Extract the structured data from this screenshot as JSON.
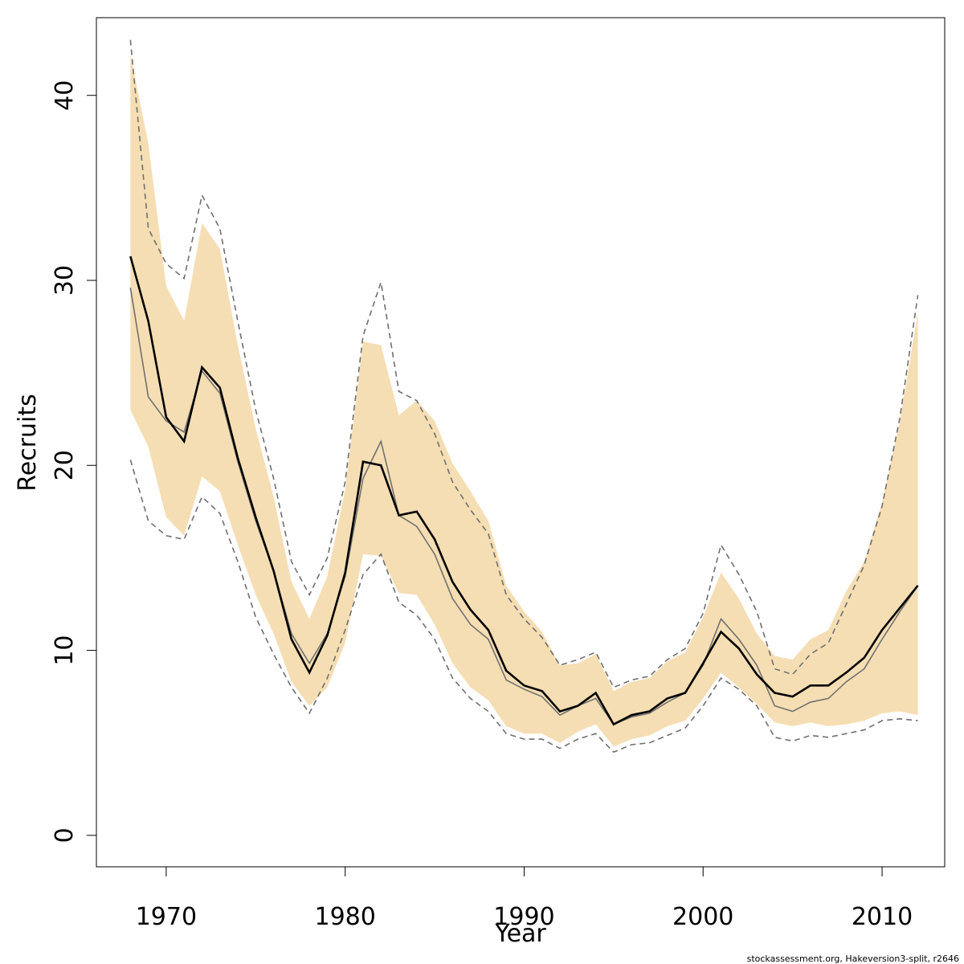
{
  "chart_data": {
    "type": "line",
    "title": "",
    "xlabel": "Year",
    "ylabel": "Recruits",
    "xlim": [
      1966.1,
      2013.5
    ],
    "ylim": [
      -1.7,
      44.2
    ],
    "xticks": [
      1970,
      1980,
      1990,
      2000,
      2010
    ],
    "yticks": [
      0,
      10,
      20,
      30,
      40
    ],
    "grid": false,
    "x": [
      1968,
      1969,
      1970,
      1971,
      1972,
      1973,
      1974,
      1975,
      1976,
      1977,
      1978,
      1979,
      1980,
      1981,
      1982,
      1983,
      1984,
      1985,
      1986,
      1987,
      1988,
      1989,
      1990,
      1991,
      1992,
      1993,
      1994,
      1995,
      1996,
      1997,
      1998,
      1999,
      2000,
      2001,
      2002,
      2003,
      2004,
      2005,
      2006,
      2007,
      2008,
      2009,
      2010,
      2011,
      2012
    ],
    "series": [
      {
        "name": "band-upper",
        "style": "fill",
        "color": "#f5deb3",
        "values": [
          42.2,
          37.4,
          29.7,
          27.8,
          33.1,
          31.7,
          26.5,
          22.0,
          18.3,
          13.7,
          11.7,
          14.0,
          18.7,
          26.7,
          26.5,
          22.7,
          23.5,
          22.4,
          20.1,
          18.6,
          17.0,
          13.5,
          12.1,
          11.0,
          9.2,
          9.3,
          9.8,
          7.8,
          8.3,
          8.5,
          9.4,
          9.9,
          11.8,
          14.2,
          12.8,
          10.9,
          9.7,
          9.5,
          10.6,
          11.1,
          13.2,
          14.8,
          18.0,
          22.4,
          28.3
        ]
      },
      {
        "name": "band-lower",
        "style": "fill",
        "color": "#f5deb3",
        "values": [
          23.0,
          21.0,
          17.2,
          16.2,
          19.4,
          18.6,
          15.7,
          13.0,
          10.9,
          8.3,
          7.0,
          8.0,
          10.4,
          15.2,
          15.1,
          13.1,
          13.0,
          11.4,
          9.3,
          8.0,
          7.3,
          5.9,
          5.5,
          5.5,
          5.0,
          5.6,
          6.0,
          4.8,
          5.2,
          5.4,
          5.9,
          6.2,
          7.4,
          8.8,
          8.0,
          7.1,
          6.1,
          5.9,
          6.1,
          5.9,
          6.0,
          6.2,
          6.6,
          6.7,
          6.5
        ]
      },
      {
        "name": "dashed-upper",
        "style": "dashed",
        "color": "#707070",
        "values": [
          43.0,
          32.8,
          30.9,
          30.1,
          34.6,
          32.8,
          27.8,
          23.0,
          19.3,
          14.8,
          13.0,
          15.0,
          19.1,
          27.0,
          29.9,
          24.0,
          23.5,
          21.7,
          19.1,
          17.6,
          16.3,
          13.0,
          11.7,
          10.7,
          9.2,
          9.5,
          9.9,
          8.0,
          8.4,
          8.6,
          9.5,
          10.1,
          12.0,
          15.7,
          14.1,
          12.1,
          9.0,
          8.7,
          9.8,
          10.4,
          12.5,
          14.6,
          17.8,
          22.6,
          29.2
        ]
      },
      {
        "name": "dashed-lower",
        "style": "dashed",
        "color": "#707070",
        "values": [
          20.3,
          17.0,
          16.2,
          16.0,
          18.3,
          17.4,
          14.8,
          11.8,
          9.8,
          8.0,
          6.6,
          8.5,
          11.1,
          14.1,
          15.2,
          12.6,
          11.9,
          10.6,
          8.5,
          7.4,
          6.7,
          5.5,
          5.2,
          5.2,
          4.7,
          5.2,
          5.5,
          4.5,
          4.9,
          5.0,
          5.4,
          5.8,
          7.0,
          8.5,
          7.9,
          7.0,
          5.3,
          5.1,
          5.4,
          5.3,
          5.5,
          5.7,
          6.2,
          6.3,
          6.2
        ]
      },
      {
        "name": "gray-line",
        "style": "solid-thin",
        "color": "#707070",
        "values": [
          29.6,
          23.7,
          22.4,
          21.8,
          25.1,
          23.9,
          20.2,
          17.0,
          14.3,
          10.9,
          9.3,
          10.9,
          14.0,
          19.3,
          21.3,
          17.3,
          16.7,
          15.2,
          12.8,
          11.4,
          10.6,
          8.4,
          7.9,
          7.5,
          6.5,
          7.0,
          7.4,
          6.0,
          6.4,
          6.6,
          7.2,
          7.7,
          9.2,
          11.7,
          10.6,
          9.2,
          7.0,
          6.7,
          7.2,
          7.4,
          8.3,
          9.0,
          10.6,
          12.1,
          13.5
        ]
      },
      {
        "name": "black-line",
        "style": "solid-thick",
        "color": "#000000",
        "values": [
          31.3,
          27.8,
          22.6,
          21.3,
          25.3,
          24.2,
          20.4,
          17.2,
          14.3,
          10.6,
          8.8,
          10.8,
          14.2,
          20.2,
          20.0,
          17.3,
          17.5,
          16.0,
          13.7,
          12.2,
          11.1,
          8.9,
          8.1,
          7.8,
          6.7,
          7.0,
          7.7,
          6.0,
          6.5,
          6.7,
          7.4,
          7.7,
          9.3,
          11.0,
          10.1,
          8.7,
          7.7,
          7.5,
          8.1,
          8.1,
          8.8,
          9.6,
          11.1,
          12.3,
          13.5
        ]
      }
    ]
  },
  "footer": "stockassessment.org, Hakeversion3-split, r2646"
}
